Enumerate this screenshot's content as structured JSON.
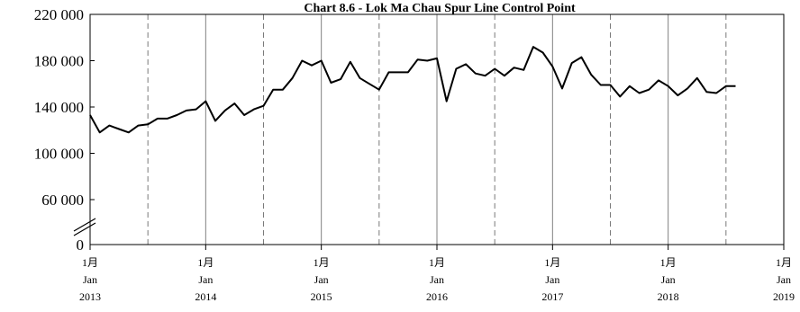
{
  "chart_data": {
    "type": "line",
    "title": "Chart 8.6 - Lok Ma Chau Spur Line Control Point",
    "xlabel": "",
    "ylabel": "",
    "ylim": [
      0,
      220000
    ],
    "axis_break": true,
    "yticks": [
      {
        "value": 0,
        "label": "0"
      },
      {
        "value": 60000,
        "label": "60 000"
      },
      {
        "value": 100000,
        "label": "100 000"
      },
      {
        "value": 140000,
        "label": "140 000"
      },
      {
        "value": 180000,
        "label": "180 000"
      },
      {
        "value": 220000,
        "label": "220 000"
      }
    ],
    "xticks": [
      {
        "month": 0,
        "line1": "1月",
        "line2": "Jan",
        "line3": "2013"
      },
      {
        "month": 12,
        "line1": "1月",
        "line2": "Jan",
        "line3": "2014"
      },
      {
        "month": 24,
        "line1": "1月",
        "line2": "Jan",
        "line3": "2015"
      },
      {
        "month": 36,
        "line1": "1月",
        "line2": "Jan",
        "line3": "2016"
      },
      {
        "month": 48,
        "line1": "1月",
        "line2": "Jan",
        "line3": "2017"
      },
      {
        "month": 60,
        "line1": "1月",
        "line2": "Jan",
        "line3": "2018"
      },
      {
        "month": 72,
        "line1": "1月",
        "line2": "Jan",
        "line3": "2019"
      }
    ],
    "grid": {
      "solid_at_january": true,
      "dashed_at_july": true
    },
    "x_start": "2013-01",
    "series": [
      {
        "name": "",
        "color": "#000000",
        "values": [
          133000,
          118000,
          124000,
          121000,
          118000,
          124000,
          125000,
          130000,
          130000,
          133000,
          137000,
          138000,
          145000,
          128000,
          137000,
          143000,
          133000,
          138000,
          141000,
          155000,
          155000,
          165000,
          180000,
          176000,
          180000,
          161000,
          164000,
          179000,
          165000,
          160000,
          155000,
          170000,
          170000,
          170000,
          181000,
          180000,
          182000,
          145000,
          173000,
          177000,
          169000,
          167000,
          173000,
          167000,
          174000,
          172000,
          192000,
          187000,
          175000,
          156000,
          178000,
          183000,
          168000,
          159000,
          159000,
          149000,
          158000,
          152000,
          155000,
          163000,
          158000,
          150000,
          156000,
          165000,
          153000,
          152000,
          158000,
          158000
        ]
      }
    ]
  }
}
